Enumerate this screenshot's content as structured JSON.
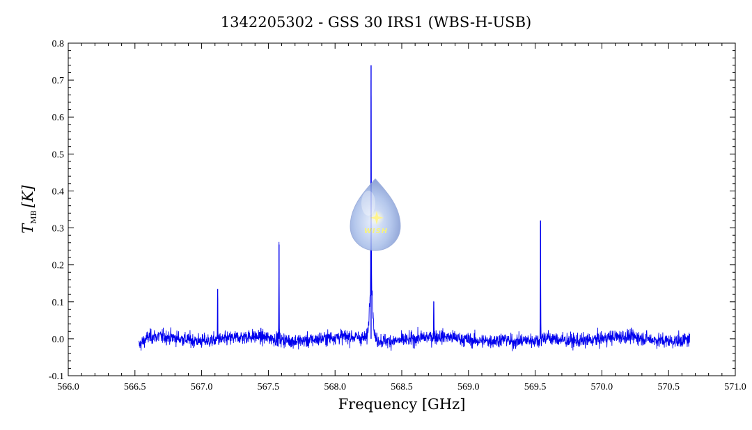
{
  "chart_data": {
    "type": "line",
    "title": "1342205302 - GSS 30 IRS1 (WBS-H-USB)",
    "xlabel": "Frequency [GHz]",
    "ylabel": "T",
    "ylabel_subscript": "MB",
    "ylabel_unit": "[K]",
    "xlim": [
      566.0,
      571.0
    ],
    "ylim": [
      -0.1,
      0.8
    ],
    "x_ticks": [
      "566.0",
      "566.5",
      "567.0",
      "567.5",
      "568.0",
      "568.5",
      "569.0",
      "569.5",
      "570.0",
      "570.5",
      "571.0"
    ],
    "y_ticks": [
      "-0.1",
      "0.0",
      "0.1",
      "0.2",
      "0.3",
      "0.4",
      "0.5",
      "0.6",
      "0.7",
      "0.8"
    ],
    "grid": false,
    "series": [
      {
        "color": "#0000ee",
        "x_range": [
          566.53,
          570.66
        ],
        "noise_rms": 0.013,
        "lines": [
          {
            "x": 567.12,
            "y": 0.135
          },
          {
            "x": 567.58,
            "y": 0.255
          },
          {
            "x": 568.27,
            "y": 0.74
          },
          {
            "x": 568.74,
            "y": 0.1
          },
          {
            "x": 569.54,
            "y": 0.32
          }
        ]
      }
    ],
    "watermark": {
      "text": "WISH",
      "icon": "wish-drop-logo"
    }
  }
}
